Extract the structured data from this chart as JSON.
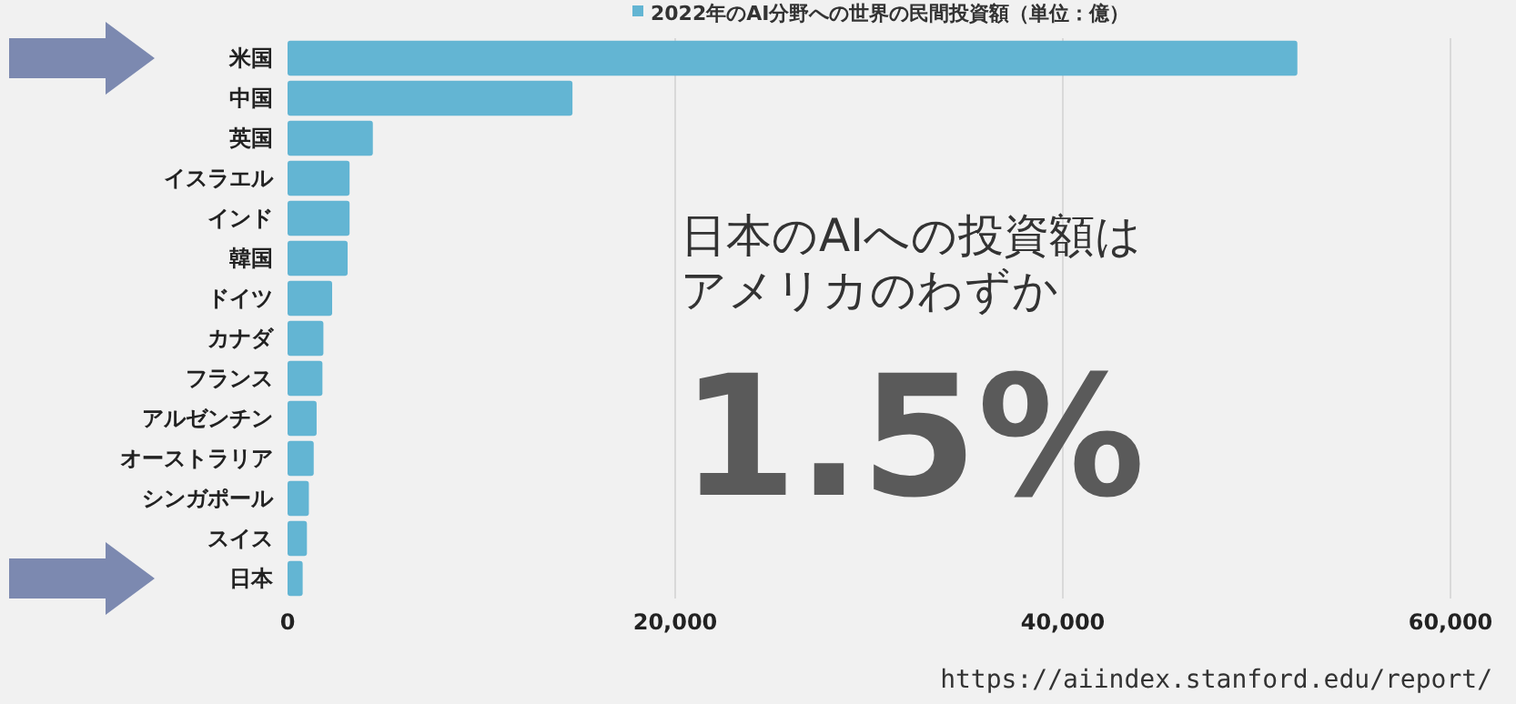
{
  "chart_data": {
    "type": "bar",
    "orientation": "horizontal",
    "categories": [
      "米国",
      "中国",
      "英国",
      "イスラエル",
      "インド",
      "韓国",
      "ドイツ",
      "カナダ",
      "フランス",
      "アルゼンチン",
      "オーストラリア",
      "シンガポール",
      "スイス",
      "日本"
    ],
    "series": [
      {
        "name": "2022年のAI分野への世界の民間投資額（単位：億）",
        "color": "#63b5d3",
        "values": [
          52100,
          14700,
          4400,
          3200,
          3200,
          3100,
          2300,
          1850,
          1800,
          1500,
          1350,
          1100,
          1000,
          780
        ]
      }
    ],
    "xlim": [
      0,
      60000
    ],
    "xticks": [
      {
        "value": 0,
        "label": "0"
      },
      {
        "value": 20000,
        "label": "20,000"
      },
      {
        "value": 40000,
        "label": "40,000"
      },
      {
        "value": 60000,
        "label": "60,000"
      }
    ],
    "grid": "x",
    "legend": "top",
    "annotations": [
      "日本のAIへの投資額は",
      "アメリカのわずか",
      "1.5%",
      "https://aiindex.stanford.edu/report/"
    ]
  }
}
